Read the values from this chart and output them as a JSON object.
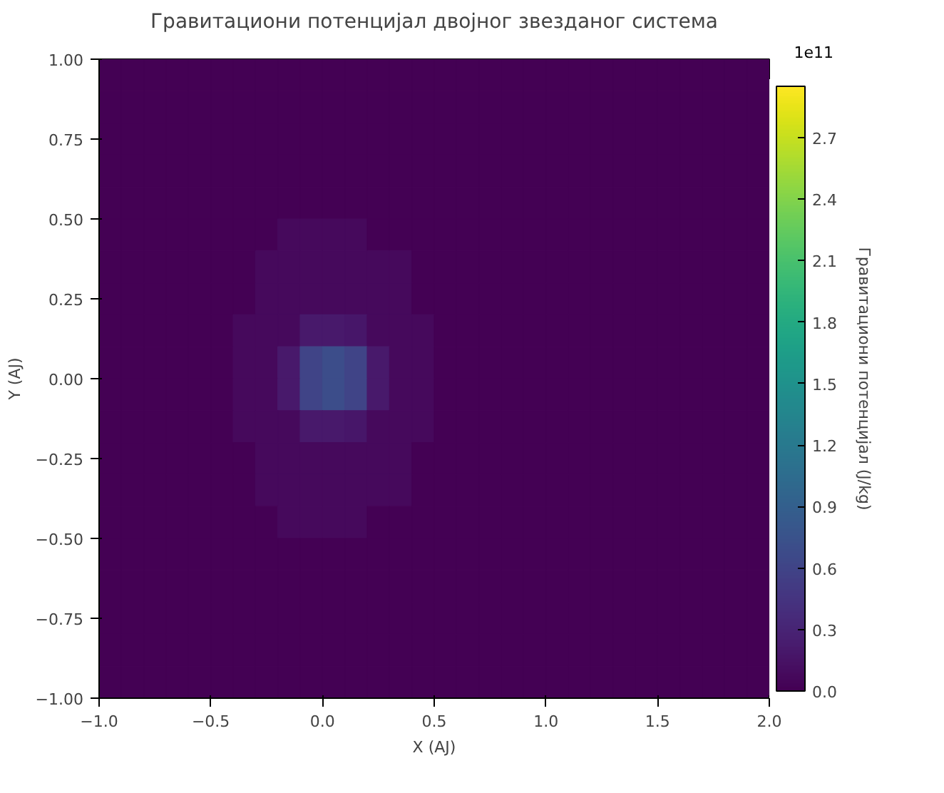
{
  "chart_data": {
    "type": "heatmap",
    "title": "Гравитациони потенцијал двојног звезданог система",
    "xlabel": "X (AJ)",
    "ylabel": "Y (AJ)",
    "clabel": "Гравитациони потенцијал (J/kg)",
    "annotations": [
      "1e11"
    ],
    "x": [
      -0.95,
      -0.85,
      -0.75,
      -0.65,
      -0.55,
      -0.45,
      -0.35,
      -0.25,
      -0.15,
      -0.05,
      0.05,
      0.15,
      0.25,
      0.35,
      0.45,
      0.55,
      0.65,
      0.75,
      0.85,
      0.95,
      1.05,
      1.15,
      1.25,
      1.35,
      1.45,
      1.55,
      1.65,
      1.75,
      1.85,
      1.95
    ],
    "y": [
      0.95,
      0.85,
      0.75,
      0.65,
      0.55,
      0.45,
      0.35,
      0.25,
      0.15,
      0.05,
      -0.05,
      -0.15,
      -0.25,
      -0.35,
      -0.45,
      -0.55,
      -0.65,
      -0.75,
      -0.85,
      -0.95
    ],
    "cells": [
      [
        0,
        0,
        0,
        0,
        0,
        0,
        0,
        0,
        0,
        0,
        0,
        0,
        0,
        0,
        0,
        0,
        0,
        0,
        0,
        0,
        0,
        0,
        0,
        0,
        0,
        0,
        0,
        0,
        0,
        0
      ],
      [
        0,
        0,
        0,
        0,
        0,
        0,
        0,
        0,
        0,
        0,
        0,
        0,
        0,
        0,
        0,
        0,
        0,
        0,
        0,
        0,
        0,
        0,
        0,
        0,
        0,
        0,
        0,
        0,
        0,
        0
      ],
      [
        0,
        0,
        0,
        0,
        0,
        0,
        0,
        0,
        0,
        0,
        0,
        0,
        0,
        0,
        0,
        0,
        0,
        0,
        0,
        0,
        0,
        0,
        0,
        0,
        0,
        0,
        0,
        0,
        0,
        0
      ],
      [
        0,
        0,
        0,
        0,
        0,
        0,
        0,
        0,
        0,
        0,
        0,
        0,
        0,
        0,
        0,
        0,
        0,
        0,
        0,
        0,
        0,
        0,
        0,
        0,
        0,
        0,
        0,
        0,
        0,
        0
      ],
      [
        0,
        0,
        0,
        0,
        0,
        0,
        0,
        0,
        0,
        0,
        0,
        0,
        0,
        0,
        0,
        0,
        0,
        0,
        0,
        0,
        0,
        0,
        0,
        0,
        0,
        0,
        0,
        0,
        0,
        0
      ],
      [
        0,
        0,
        0,
        0,
        0,
        0,
        0,
        0,
        0.08,
        0.08,
        0.08,
        0.08,
        0,
        0,
        0,
        0,
        0,
        0,
        0,
        0,
        0,
        0,
        0,
        0,
        0,
        0,
        0,
        0,
        0,
        0
      ],
      [
        0,
        0,
        0,
        0,
        0,
        0,
        0,
        0.08,
        0.08,
        0.08,
        0.08,
        0.08,
        0.08,
        0.08,
        0,
        0,
        0,
        0,
        0,
        0,
        0,
        0,
        0,
        0,
        0,
        0,
        0,
        0,
        0,
        0
      ],
      [
        0,
        0,
        0,
        0,
        0,
        0,
        0,
        0.08,
        0.08,
        0.08,
        0.08,
        0.08,
        0.08,
        0.08,
        0,
        0,
        0,
        0,
        0,
        0,
        0,
        0,
        0,
        0,
        0,
        0,
        0,
        0,
        0,
        0
      ],
      [
        0,
        0,
        0,
        0,
        0,
        0,
        0.08,
        0.08,
        0.08,
        0.2,
        0.2,
        0.18,
        0.08,
        0.08,
        0.08,
        0,
        0,
        0,
        0,
        0,
        0,
        0,
        0,
        0,
        0,
        0,
        0,
        0,
        0,
        0
      ],
      [
        0,
        0,
        0,
        0,
        0,
        0,
        0.08,
        0.08,
        0.2,
        0.6,
        0.7,
        0.6,
        0.2,
        0.08,
        0.08,
        0,
        0,
        0,
        0,
        0,
        0,
        0,
        0,
        0,
        0,
        0,
        0,
        0,
        0,
        0
      ],
      [
        0,
        0,
        0,
        0,
        0,
        0,
        0.08,
        0.08,
        0.2,
        0.6,
        0.7,
        0.6,
        0.2,
        0.08,
        0.08,
        0,
        0,
        0,
        0,
        0,
        0,
        0,
        0,
        0,
        0,
        0,
        0,
        0,
        0,
        0
      ],
      [
        0,
        0,
        0,
        0,
        0,
        0,
        0.08,
        0.08,
        0.08,
        0.2,
        0.2,
        0.18,
        0.08,
        0.08,
        0.08,
        0,
        0,
        0,
        0,
        0,
        0,
        0,
        0,
        0,
        0,
        0,
        0,
        0,
        0,
        0
      ],
      [
        0,
        0,
        0,
        0,
        0,
        0,
        0,
        0.08,
        0.08,
        0.08,
        0.08,
        0.08,
        0.08,
        0.08,
        0,
        0,
        0,
        0,
        0,
        0,
        0,
        0,
        0,
        0,
        0,
        0,
        0,
        0,
        0,
        0
      ],
      [
        0,
        0,
        0,
        0,
        0,
        0,
        0,
        0.08,
        0.08,
        0.08,
        0.08,
        0.08,
        0.08,
        0.08,
        0,
        0,
        0,
        0,
        0,
        0,
        0,
        0,
        0,
        0,
        0,
        0,
        0,
        0,
        0,
        0
      ],
      [
        0,
        0,
        0,
        0,
        0,
        0,
        0,
        0,
        0.08,
        0.08,
        0.08,
        0.08,
        0,
        0,
        0,
        0,
        0,
        0,
        0,
        0,
        0,
        0,
        0,
        0,
        0,
        0,
        0,
        0,
        0,
        0
      ],
      [
        0,
        0,
        0,
        0,
        0,
        0,
        0,
        0,
        0,
        0,
        0,
        0,
        0,
        0,
        0,
        0,
        0,
        0,
        0,
        0,
        0,
        0,
        0,
        0,
        0,
        0,
        0,
        0,
        0,
        0
      ],
      [
        0,
        0,
        0,
        0,
        0,
        0,
        0,
        0,
        0,
        0,
        0,
        0,
        0,
        0,
        0,
        0,
        0,
        0,
        0,
        0,
        0,
        0,
        0,
        0,
        0,
        0,
        0,
        0,
        0,
        0
      ],
      [
        0,
        0,
        0,
        0,
        0,
        0,
        0,
        0,
        0,
        0,
        0,
        0,
        0,
        0,
        0,
        0,
        0,
        0,
        0,
        0,
        0,
        0,
        0,
        0,
        0,
        0,
        0,
        0,
        0,
        0
      ],
      [
        0,
        0,
        0,
        0,
        0,
        0,
        0,
        0,
        0,
        0,
        0,
        0,
        0,
        0,
        0,
        0,
        0,
        0,
        0,
        0,
        0,
        0,
        0,
        0,
        0,
        0,
        0,
        0,
        0,
        0
      ],
      [
        0,
        0,
        0,
        0,
        0,
        0,
        0,
        0,
        0,
        0,
        0,
        0,
        0,
        0,
        0,
        0,
        0,
        0,
        0,
        0,
        0,
        0,
        0,
        0,
        0,
        0,
        0,
        0,
        0,
        0
      ]
    ],
    "clim": [
      0,
      2.95
    ],
    "cticks": [
      {
        "value": 0,
        "label": "0.0"
      },
      0.3,
      0.6,
      0.9,
      1.2,
      1.5,
      1.8,
      2.1,
      2.4,
      2.7
    ],
    "xlim": [
      -1.0,
      2.0
    ],
    "ylim": [
      -1.0,
      1.0
    ],
    "xticks": [
      {
        "value": -1.0,
        "label": "−1.0"
      },
      {
        "value": -0.5,
        "label": "−0.5"
      },
      {
        "value": 0.0,
        "label": "0.0"
      },
      {
        "value": 0.5,
        "label": "0.5"
      },
      {
        "value": 1.0,
        "label": "1.0"
      },
      {
        "value": 1.5,
        "label": "1.5"
      },
      {
        "value": 2.0,
        "label": "2.0"
      }
    ],
    "yticks": [
      {
        "value": -1.0,
        "label": "−1.00"
      },
      {
        "value": -0.75,
        "label": "−0.75"
      },
      {
        "value": -0.5,
        "label": "−0.50"
      },
      {
        "value": -0.25,
        "label": "−0.25"
      },
      {
        "value": 0.0,
        "label": "0.00"
      },
      {
        "value": 0.25,
        "label": "0.25"
      },
      {
        "value": 0.5,
        "label": "0.50"
      },
      {
        "value": 0.75,
        "label": "0.75"
      },
      {
        "value": 1.0,
        "label": "1.00"
      }
    ],
    "grid": false
  }
}
